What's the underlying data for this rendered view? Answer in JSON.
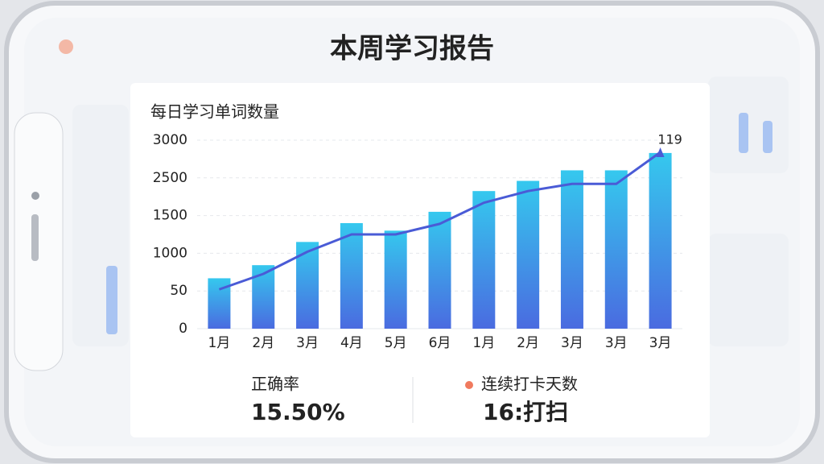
{
  "header": {
    "title": "本周学习报告"
  },
  "chart_data": {
    "type": "bar",
    "title": "每日学习单词数量",
    "categories": [
      "1月",
      "2月",
      "3月",
      "4月",
      "5月",
      "6月",
      "1月",
      "2月",
      "3月",
      "3月",
      "3月"
    ],
    "series": [
      {
        "type": "bar",
        "color": "#3f8ef0",
        "values": [
          370,
          700,
          1150,
          1400,
          1300,
          1600,
          2150,
          2420,
          2600,
          2600,
          2830
        ]
      },
      {
        "type": "line",
        "color": "#4a5bd6",
        "values": [
          90,
          480,
          1020,
          1250,
          1250,
          1390,
          1840,
          2150,
          2340,
          2340,
          2840
        ]
      }
    ],
    "annotation": "119",
    "ylim": [
      0,
      3000
    ],
    "yticks": [
      0,
      50,
      1000,
      1500,
      2500,
      3000
    ],
    "grid": true
  },
  "stats": [
    {
      "label": "正确率",
      "value": "15.50%"
    },
    {
      "label": "连续打卡天数",
      "value": "16:打扫"
    }
  ]
}
